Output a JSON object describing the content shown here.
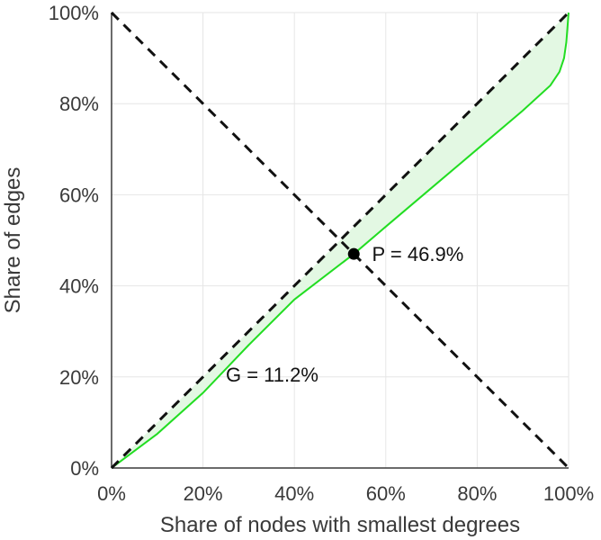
{
  "chart_data": {
    "type": "line",
    "title": "",
    "xlabel": "Share of nodes with smallest degrees",
    "ylabel": "Share of edges",
    "xlim": [
      0,
      100
    ],
    "ylim": [
      0,
      100
    ],
    "grid": true,
    "x_ticks": [
      0,
      20,
      40,
      60,
      80,
      100
    ],
    "y_ticks": [
      0,
      20,
      40,
      60,
      80,
      100
    ],
    "x_tick_labels": [
      "0%",
      "20%",
      "40%",
      "60%",
      "80%",
      "100%"
    ],
    "y_tick_labels": [
      "0%",
      "20%",
      "40%",
      "60%",
      "80%",
      "100%"
    ],
    "series": [
      {
        "kind": "lorenz-curve",
        "color": "#22dd22",
        "fill": "#e3f8e3",
        "x": [
          0,
          10,
          20,
          30,
          40,
          53,
          60,
          70,
          80,
          90,
          96,
          98,
          99,
          99.5,
          100
        ],
        "y": [
          0,
          7.5,
          16.5,
          27,
          37,
          47,
          53,
          61.5,
          70,
          78.5,
          84,
          87,
          90,
          93.5,
          100
        ]
      },
      {
        "kind": "equality-line",
        "color": "#111111",
        "dashed": true,
        "x": [
          0,
          100
        ],
        "y": [
          0,
          100
        ]
      },
      {
        "kind": "anti-diagonal",
        "color": "#111111",
        "dashed": true,
        "x": [
          0,
          100
        ],
        "y": [
          100,
          0
        ]
      }
    ],
    "annotations": [
      {
        "id": "gini",
        "text": "G = 11.2%",
        "x": 25,
        "y": 19
      },
      {
        "id": "pietra",
        "text": "P = 46.9%",
        "x": 57,
        "y": 47
      }
    ],
    "marker": {
      "x": 53,
      "y": 47,
      "color": "#000000"
    }
  }
}
